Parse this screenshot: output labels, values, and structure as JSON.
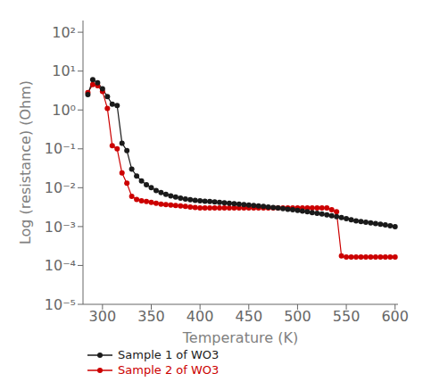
{
  "chart_data": {
    "type": "line",
    "xlabel": "Temperature (K)",
    "ylabel": "Log (resistance) (Ohm)",
    "x": [
      285,
      290,
      295,
      300,
      305,
      310,
      315,
      320,
      325,
      330,
      335,
      340,
      345,
      350,
      355,
      360,
      365,
      370,
      375,
      380,
      385,
      390,
      395,
      400,
      405,
      410,
      415,
      420,
      425,
      430,
      435,
      440,
      445,
      450,
      455,
      460,
      465,
      470,
      475,
      480,
      485,
      490,
      495,
      500,
      505,
      510,
      515,
      520,
      525,
      530,
      535,
      540,
      545,
      550,
      555,
      560,
      565,
      570,
      575,
      580,
      585,
      590,
      595,
      600
    ],
    "series": [
      {
        "name": "Sample 1 of WO3",
        "color": "#1a1a1a",
        "marker": "o",
        "values": [
          2.5,
          6.0,
          5.0,
          3.5,
          2.2,
          1.4,
          1.3,
          0.14,
          0.09,
          0.03,
          0.02,
          0.015,
          0.012,
          0.01,
          0.0085,
          0.0075,
          0.0068,
          0.0062,
          0.0058,
          0.0054,
          0.0051,
          0.0049,
          0.0047,
          0.0046,
          0.0045,
          0.0044,
          0.0043,
          0.0042,
          0.0041,
          0.004,
          0.0039,
          0.0038,
          0.0037,
          0.0036,
          0.0035,
          0.0034,
          0.0033,
          0.0032,
          0.0031,
          0.003,
          0.0029,
          0.0028,
          0.0027,
          0.0026,
          0.0025,
          0.0024,
          0.0023,
          0.0022,
          0.0021,
          0.002,
          0.0019,
          0.0018,
          0.0017,
          0.0016,
          0.0015,
          0.0014,
          0.00135,
          0.0013,
          0.00125,
          0.0012,
          0.00115,
          0.0011,
          0.00105,
          0.001
        ]
      },
      {
        "name": "Sample 2 of WO3",
        "color": "#cc0000",
        "marker": "o",
        "values": [
          2.8,
          4.5,
          4.2,
          3.0,
          1.1,
          0.12,
          0.1,
          0.024,
          0.013,
          0.006,
          0.005,
          0.0046,
          0.0044,
          0.0042,
          0.004,
          0.0038,
          0.0037,
          0.0036,
          0.0035,
          0.0034,
          0.0033,
          0.0032,
          0.0031,
          0.003,
          0.003,
          0.003,
          0.003,
          0.003,
          0.003,
          0.003,
          0.003,
          0.003,
          0.003,
          0.003,
          0.003,
          0.003,
          0.003,
          0.003,
          0.003,
          0.003,
          0.003,
          0.003,
          0.003,
          0.003,
          0.003,
          0.003,
          0.003,
          0.003,
          0.003,
          0.003,
          0.0027,
          0.0024,
          0.000175,
          0.000165,
          0.000165,
          0.000165,
          0.000165,
          0.000165,
          0.000165,
          0.000165,
          0.000165,
          0.000165,
          0.000165,
          0.000165
        ]
      }
    ],
    "xlim": [
      280,
      603
    ],
    "ylim": [
      1e-05,
      200.0
    ],
    "xticks": [
      300,
      350,
      400,
      450,
      500,
      550,
      600
    ],
    "yticks": [
      {
        "value": 1e-05,
        "label": "10⁻⁵"
      },
      {
        "value": 0.0001,
        "label": "10⁻⁴"
      },
      {
        "value": 0.001,
        "label": "10⁻³"
      },
      {
        "value": 0.01,
        "label": "10⁻²"
      },
      {
        "value": 0.1,
        "label": "10⁻¹"
      },
      {
        "value": 1.0,
        "label": "10⁰"
      },
      {
        "value": 10.0,
        "label": "10¹"
      },
      {
        "value": 100.0,
        "label": "10²"
      }
    ],
    "log": "y",
    "grid": false,
    "legend": "bottom left"
  }
}
